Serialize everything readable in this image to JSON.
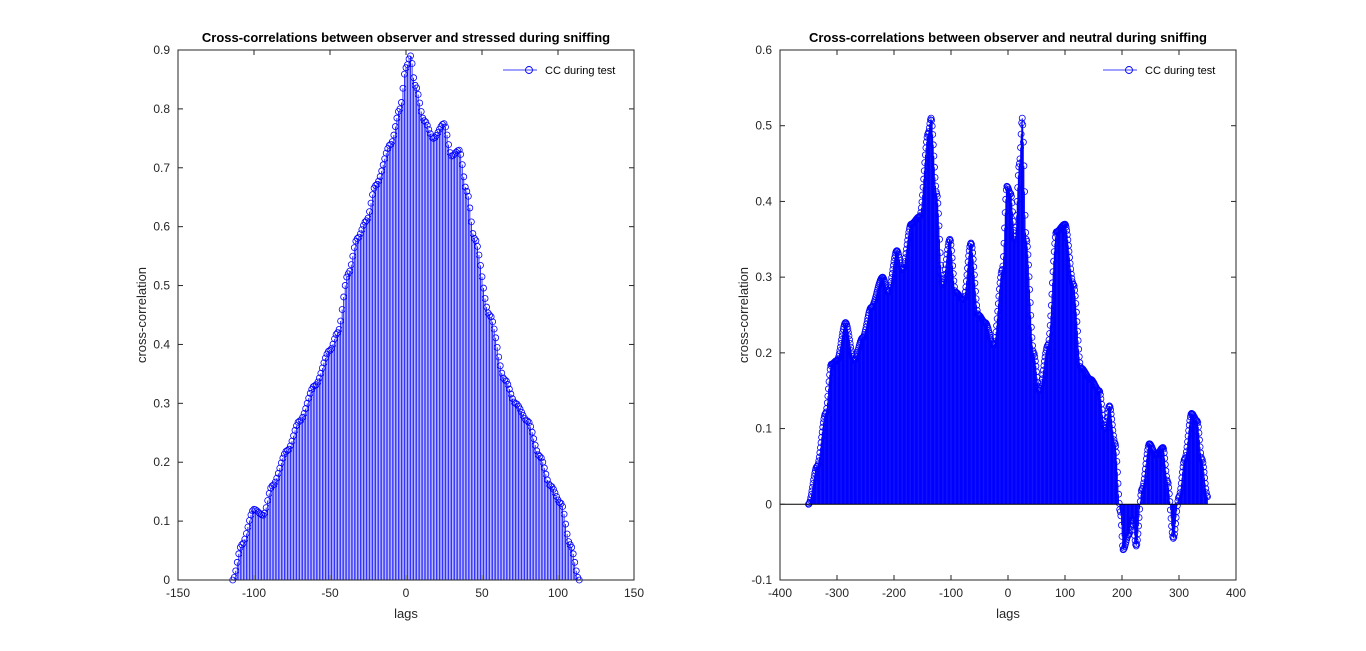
{
  "chart_data": [
    {
      "type": "stem",
      "title": "Cross-correlations between observer and stressed during sniffing",
      "xlabel": "lags",
      "ylabel": "cross-correlation",
      "xlim": [
        -150,
        150
      ],
      "ylim": [
        0,
        0.9
      ],
      "xticks": [
        -150,
        -100,
        -50,
        0,
        50,
        100,
        150
      ],
      "yticks": [
        0,
        0.1,
        0.2,
        0.3,
        0.4,
        0.5,
        0.6,
        0.7,
        0.8,
        0.9
      ],
      "legend": "top-right",
      "grid": false,
      "color": "#0000ff",
      "series": [
        {
          "name": "CC during test",
          "lag_range": [
            -114,
            114
          ],
          "anchors": [
            [
              -114,
              0.0
            ],
            [
              -108,
              0.06
            ],
            [
              -100,
              0.12
            ],
            [
              -94,
              0.11
            ],
            [
              -88,
              0.16
            ],
            [
              -78,
              0.22
            ],
            [
              -70,
              0.27
            ],
            [
              -60,
              0.33
            ],
            [
              -50,
              0.39
            ],
            [
              -45,
              0.42
            ],
            [
              -38,
              0.52
            ],
            [
              -32,
              0.58
            ],
            [
              -26,
              0.61
            ],
            [
              -20,
              0.67
            ],
            [
              -10,
              0.74
            ],
            [
              -4,
              0.8
            ],
            [
              0,
              0.87
            ],
            [
              3,
              0.89
            ],
            [
              6,
              0.84
            ],
            [
              12,
              0.78
            ],
            [
              18,
              0.75
            ],
            [
              25,
              0.775
            ],
            [
              30,
              0.72
            ],
            [
              35,
              0.73
            ],
            [
              40,
              0.66
            ],
            [
              45,
              0.58
            ],
            [
              55,
              0.45
            ],
            [
              65,
              0.34
            ],
            [
              72,
              0.3
            ],
            [
              80,
              0.27
            ],
            [
              88,
              0.21
            ],
            [
              95,
              0.16
            ],
            [
              102,
              0.13
            ],
            [
              108,
              0.06
            ],
            [
              114,
              0.0
            ]
          ]
        }
      ]
    },
    {
      "type": "stem",
      "title": "Cross-correlations between observer and neutral during sniffing",
      "xlabel": "lags",
      "ylabel": "cross-correlation",
      "xlim": [
        -400,
        400
      ],
      "ylim": [
        -0.1,
        0.6
      ],
      "xticks": [
        -400,
        -300,
        -200,
        -100,
        0,
        100,
        200,
        300,
        400
      ],
      "yticks": [
        -0.1,
        0,
        0.1,
        0.2,
        0.3,
        0.4,
        0.5,
        0.6
      ],
      "legend": "top-right",
      "grid": false,
      "color": "#0000ff",
      "series": [
        {
          "name": "CC during test",
          "lag_range": [
            -350,
            350
          ],
          "anchors": [
            [
              -350,
              0.0
            ],
            [
              -335,
              0.05
            ],
            [
              -320,
              0.12
            ],
            [
              -310,
              0.185
            ],
            [
              -300,
              0.19
            ],
            [
              -285,
              0.24
            ],
            [
              -270,
              0.19
            ],
            [
              -255,
              0.22
            ],
            [
              -240,
              0.26
            ],
            [
              -220,
              0.3
            ],
            [
              -210,
              0.28
            ],
            [
              -195,
              0.335
            ],
            [
              -185,
              0.31
            ],
            [
              -170,
              0.37
            ],
            [
              -155,
              0.38
            ],
            [
              -140,
              0.49
            ],
            [
              -135,
              0.51
            ],
            [
              -125,
              0.41
            ],
            [
              -115,
              0.29
            ],
            [
              -102,
              0.35
            ],
            [
              -92,
              0.28
            ],
            [
              -78,
              0.27
            ],
            [
              -65,
              0.345
            ],
            [
              -52,
              0.25
            ],
            [
              -40,
              0.24
            ],
            [
              -25,
              0.21
            ],
            [
              -10,
              0.31
            ],
            [
              -2,
              0.42
            ],
            [
              5,
              0.41
            ],
            [
              12,
              0.35
            ],
            [
              20,
              0.45
            ],
            [
              25,
              0.51
            ],
            [
              32,
              0.35
            ],
            [
              45,
              0.2
            ],
            [
              55,
              0.15
            ],
            [
              70,
              0.21
            ],
            [
              85,
              0.36
            ],
            [
              100,
              0.37
            ],
            [
              115,
              0.29
            ],
            [
              128,
              0.18
            ],
            [
              145,
              0.165
            ],
            [
              160,
              0.15
            ],
            [
              170,
              0.1
            ],
            [
              178,
              0.13
            ],
            [
              188,
              0.08
            ],
            [
              197,
              -0.01
            ],
            [
              202,
              -0.06
            ],
            [
              212,
              -0.04
            ],
            [
              218,
              -0.02
            ],
            [
              225,
              -0.055
            ],
            [
              235,
              0.02
            ],
            [
              248,
              0.08
            ],
            [
              260,
              0.065
            ],
            [
              272,
              0.075
            ],
            [
              280,
              0.03
            ],
            [
              290,
              -0.045
            ],
            [
              300,
              0.01
            ],
            [
              310,
              0.06
            ],
            [
              322,
              0.12
            ],
            [
              332,
              0.11
            ],
            [
              340,
              0.06
            ],
            [
              350,
              0.01
            ]
          ]
        }
      ]
    }
  ]
}
